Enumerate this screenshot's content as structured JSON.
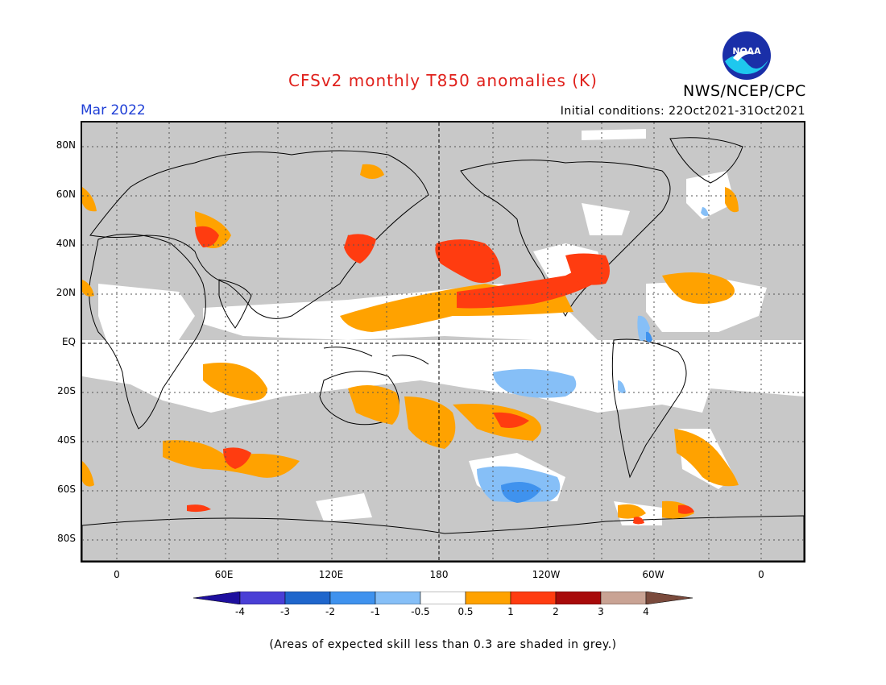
{
  "title": "CFSv2 monthly T850 anomalies (K)",
  "period": "Mar 2022",
  "initial_conditions": "Initial conditions: 22Oct2021-31Oct2021",
  "agency": "NWS/NCEP/CPC",
  "logo_text": "NOAA",
  "footnote": "(Areas of expected skill less than 0.3 are shaded in grey.)",
  "lat_labels": [
    "80N",
    "60N",
    "40N",
    "20N",
    "EQ",
    "20S",
    "40S",
    "60S",
    "80S"
  ],
  "lon_labels": [
    "0",
    "60E",
    "120E",
    "180",
    "120W",
    "60W",
    "0"
  ],
  "colorbar": {
    "labels": [
      "-4",
      "-3",
      "-2",
      "-1",
      "-0.5",
      "0.5",
      "1",
      "2",
      "3",
      "4"
    ],
    "colors": [
      "#1e0f9e",
      "#4a3fd6",
      "#1f66cc",
      "#3f92ee",
      "#86bff7",
      "#ffffff",
      "#ffa200",
      "#ff3c10",
      "#a80a0a",
      "#c9a394",
      "#7a4a3c"
    ]
  },
  "colors": {
    "grey_mask": "#c8c8c8",
    "neutral": "#ffffff",
    "warm_1": "#ffa200",
    "warm_2": "#ff3c10",
    "cool_1": "#86bff7",
    "cool_2": "#3f92ee",
    "title": "#e0201b",
    "period": "#1f3fd6"
  }
}
